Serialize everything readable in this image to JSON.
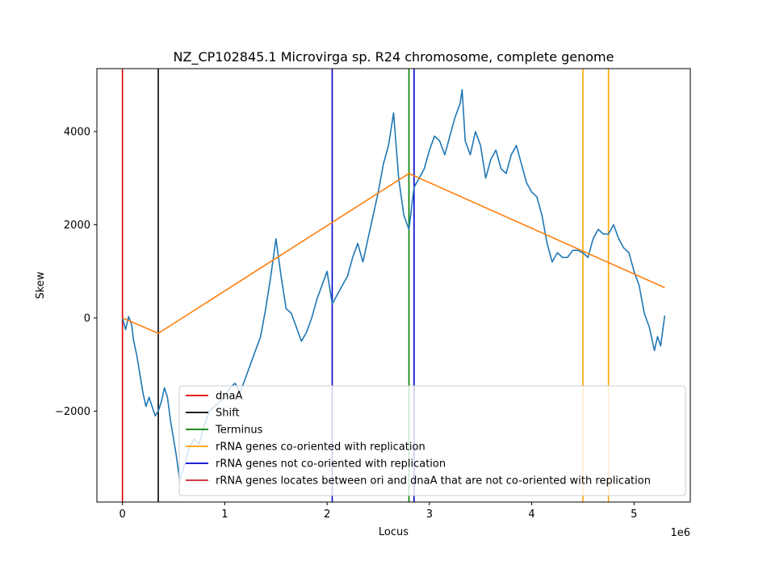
{
  "chart_data": {
    "type": "line",
    "title": "NZ_CP102845.1 Microvirga sp. R24 chromosome, complete genome",
    "xlabel": "Locus",
    "ylabel": "Skew",
    "x_offset_label": "1e6",
    "xlim": [
      -250000,
      5550000
    ],
    "ylim": [
      -3950,
      5350
    ],
    "x_ticks": [
      0,
      1000000,
      2000000,
      3000000,
      4000000,
      5000000
    ],
    "x_tick_labels": [
      "0",
      "1",
      "2",
      "3",
      "4",
      "5"
    ],
    "y_ticks": [
      -2000,
      0,
      2000,
      4000
    ],
    "y_tick_labels": [
      "−2000",
      "0",
      "2000",
      "4000"
    ],
    "legend_position": "lower-right",
    "vlines": [
      {
        "x": 0,
        "color": "#e00000",
        "legend": "dnaA"
      },
      {
        "x": 350000,
        "color": "#000000",
        "legend": "Shift"
      },
      {
        "x": 2800000,
        "color": "#008000",
        "legend": "Terminus"
      },
      {
        "x": 4500000,
        "color": "#ffa500",
        "legend": "rRNA genes co-oriented with replication"
      },
      {
        "x": 4750000,
        "color": "#ffa500",
        "legend": null
      },
      {
        "x": 2050000,
        "color": "#0000cc",
        "legend": "rRNA genes not co-oriented with replication"
      },
      {
        "x": 2850000,
        "color": "#0000cc",
        "legend": null
      }
    ],
    "legend": [
      {
        "label": "dnaA",
        "color": "#e00000"
      },
      {
        "label": "Shift",
        "color": "#000000"
      },
      {
        "label": "Terminus",
        "color": "#008000"
      },
      {
        "label": "rRNA genes co-oriented with replication",
        "color": "#ffa500"
      },
      {
        "label": "rRNA genes not co-oriented with replication",
        "color": "#0000cc"
      },
      {
        "label": "rRNA genes locates between ori and dnaA that are not co-oriented with replication",
        "color": "#c8202c"
      }
    ],
    "series": [
      {
        "color": "#1f77b4",
        "x": [
          0,
          30000,
          60000,
          90000,
          110000,
          140000,
          170000,
          200000,
          230000,
          260000,
          290000,
          320000,
          350000,
          380000,
          410000,
          440000,
          470000,
          500000,
          530000,
          560000,
          600000,
          650000,
          700000,
          750000,
          800000,
          850000,
          900000,
          950000,
          1000000,
          1050000,
          1100000,
          1150000,
          1200000,
          1250000,
          1300000,
          1350000,
          1400000,
          1450000,
          1500000,
          1550000,
          1600000,
          1650000,
          1700000,
          1750000,
          1800000,
          1850000,
          1900000,
          1950000,
          2000000,
          2050000,
          2100000,
          2150000,
          2200000,
          2250000,
          2300000,
          2350000,
          2400000,
          2450000,
          2500000,
          2550000,
          2600000,
          2650000,
          2700000,
          2750000,
          2800000,
          2850000,
          2900000,
          2950000,
          3000000,
          3050000,
          3100000,
          3150000,
          3200000,
          3250000,
          3300000,
          3320000,
          3350000,
          3400000,
          3450000,
          3500000,
          3550000,
          3600000,
          3650000,
          3700000,
          3750000,
          3800000,
          3850000,
          3900000,
          3950000,
          4000000,
          4050000,
          4100000,
          4150000,
          4200000,
          4250000,
          4300000,
          4350000,
          4400000,
          4450000,
          4500000,
          4550000,
          4600000,
          4650000,
          4700000,
          4750000,
          4800000,
          4850000,
          4900000,
          4950000,
          5000000,
          5050000,
          5100000,
          5150000,
          5200000,
          5230000,
          5260000,
          5300000
        ],
        "values": [
          0,
          -250,
          30,
          -150,
          -500,
          -800,
          -1200,
          -1600,
          -1900,
          -1700,
          -1900,
          -2100,
          -2000,
          -1800,
          -1500,
          -1700,
          -2200,
          -2600,
          -3000,
          -3500,
          -3200,
          -2800,
          -2600,
          -2700,
          -2300,
          -2000,
          -1900,
          -1800,
          -1700,
          -1500,
          -1400,
          -1600,
          -1300,
          -1000,
          -700,
          -400,
          200,
          900,
          1700,
          900,
          200,
          100,
          -200,
          -500,
          -300,
          0,
          400,
          700,
          1000,
          300,
          500,
          700,
          900,
          1300,
          1600,
          1200,
          1700,
          2200,
          2700,
          3300,
          3700,
          4400,
          3000,
          2200,
          1900,
          2800,
          3000,
          3200,
          3600,
          3900,
          3800,
          3500,
          3900,
          4300,
          4600,
          4900,
          3800,
          3500,
          4000,
          3700,
          3000,
          3400,
          3600,
          3200,
          3100,
          3500,
          3700,
          3300,
          2900,
          2700,
          2600,
          2200,
          1600,
          1200,
          1400,
          1300,
          1300,
          1450,
          1450,
          1400,
          1300,
          1700,
          1900,
          1800,
          1800,
          2000,
          1700,
          1500,
          1400,
          1000,
          700,
          100,
          -200,
          -700,
          -400,
          -600,
          50
        ]
      },
      {
        "color": "#ff7f0e",
        "x": [
          0,
          350000,
          2800000,
          5300000
        ],
        "values": [
          0,
          -330,
          3100,
          650
        ]
      }
    ]
  }
}
